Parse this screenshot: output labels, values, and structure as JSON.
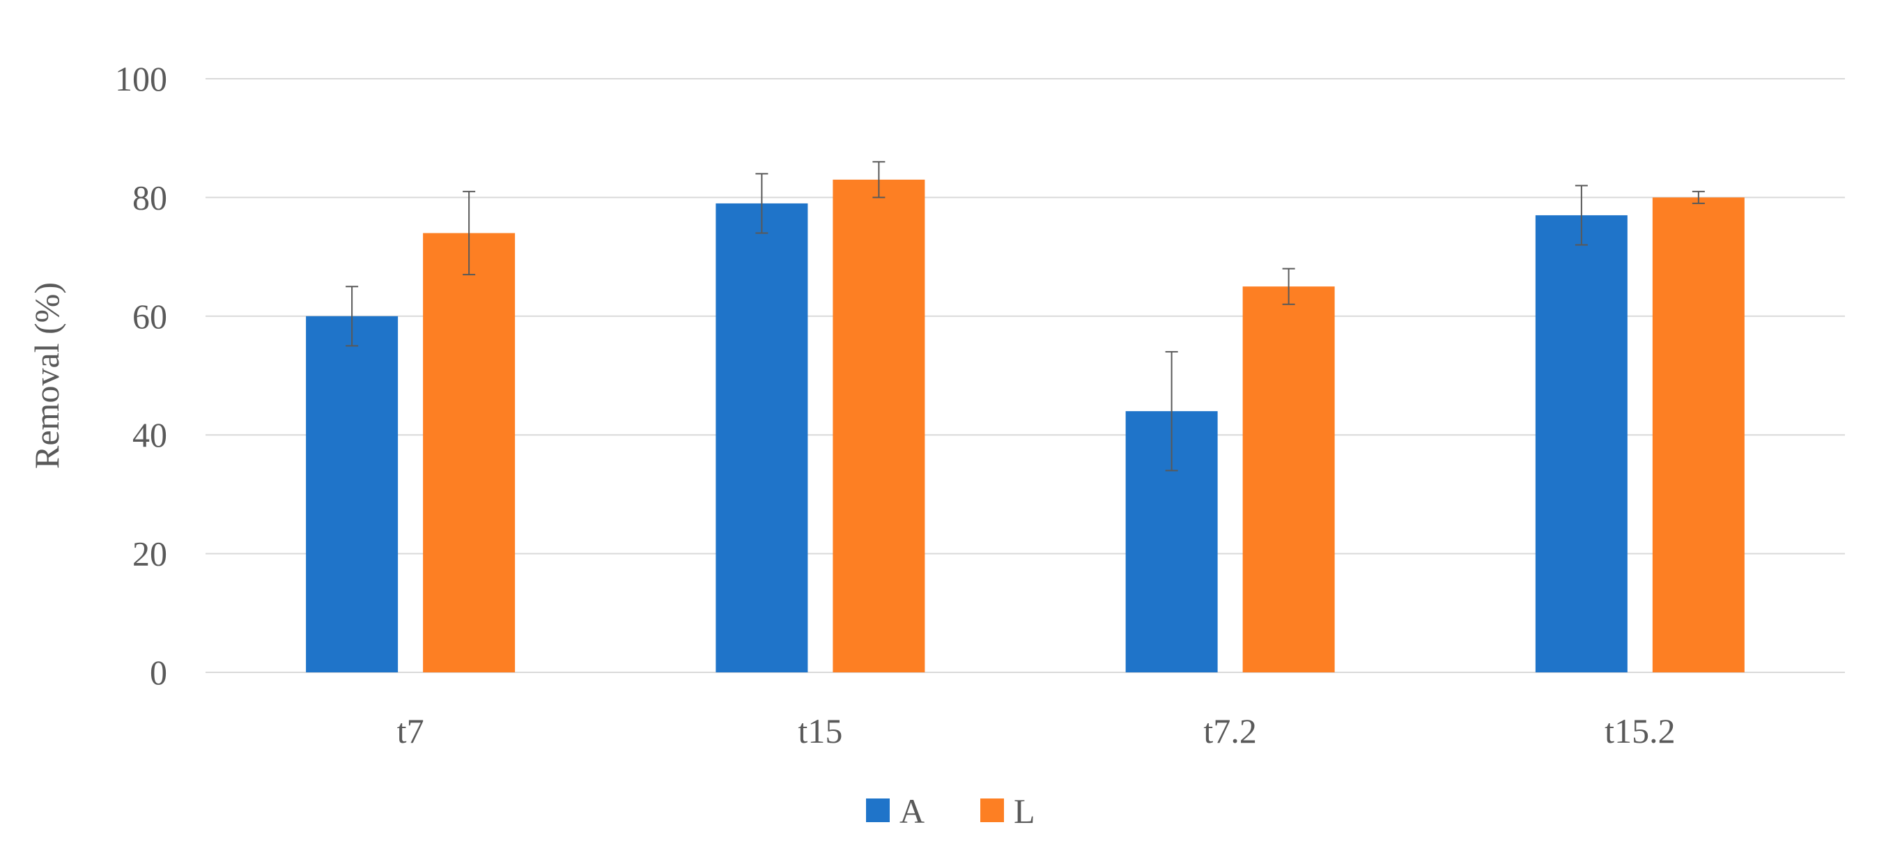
{
  "chart_data": {
    "type": "bar",
    "title": "",
    "xlabel": "",
    "ylabel": "Removal (%)",
    "ylim": [
      0,
      100
    ],
    "yticks": [
      0,
      20,
      40,
      60,
      80,
      100
    ],
    "grid": true,
    "legend_position": "bottom-center",
    "categories": [
      "t7",
      "t15",
      "t7.2",
      "t15.2"
    ],
    "series": [
      {
        "name": "A",
        "color": "#1f74c9",
        "values": [
          60,
          79,
          44,
          77
        ],
        "error": [
          5,
          5,
          10,
          5
        ]
      },
      {
        "name": "L",
        "color": "#fd7f23",
        "values": [
          74,
          83,
          65,
          80
        ],
        "error": [
          7,
          3,
          3,
          1
        ]
      }
    ]
  }
}
